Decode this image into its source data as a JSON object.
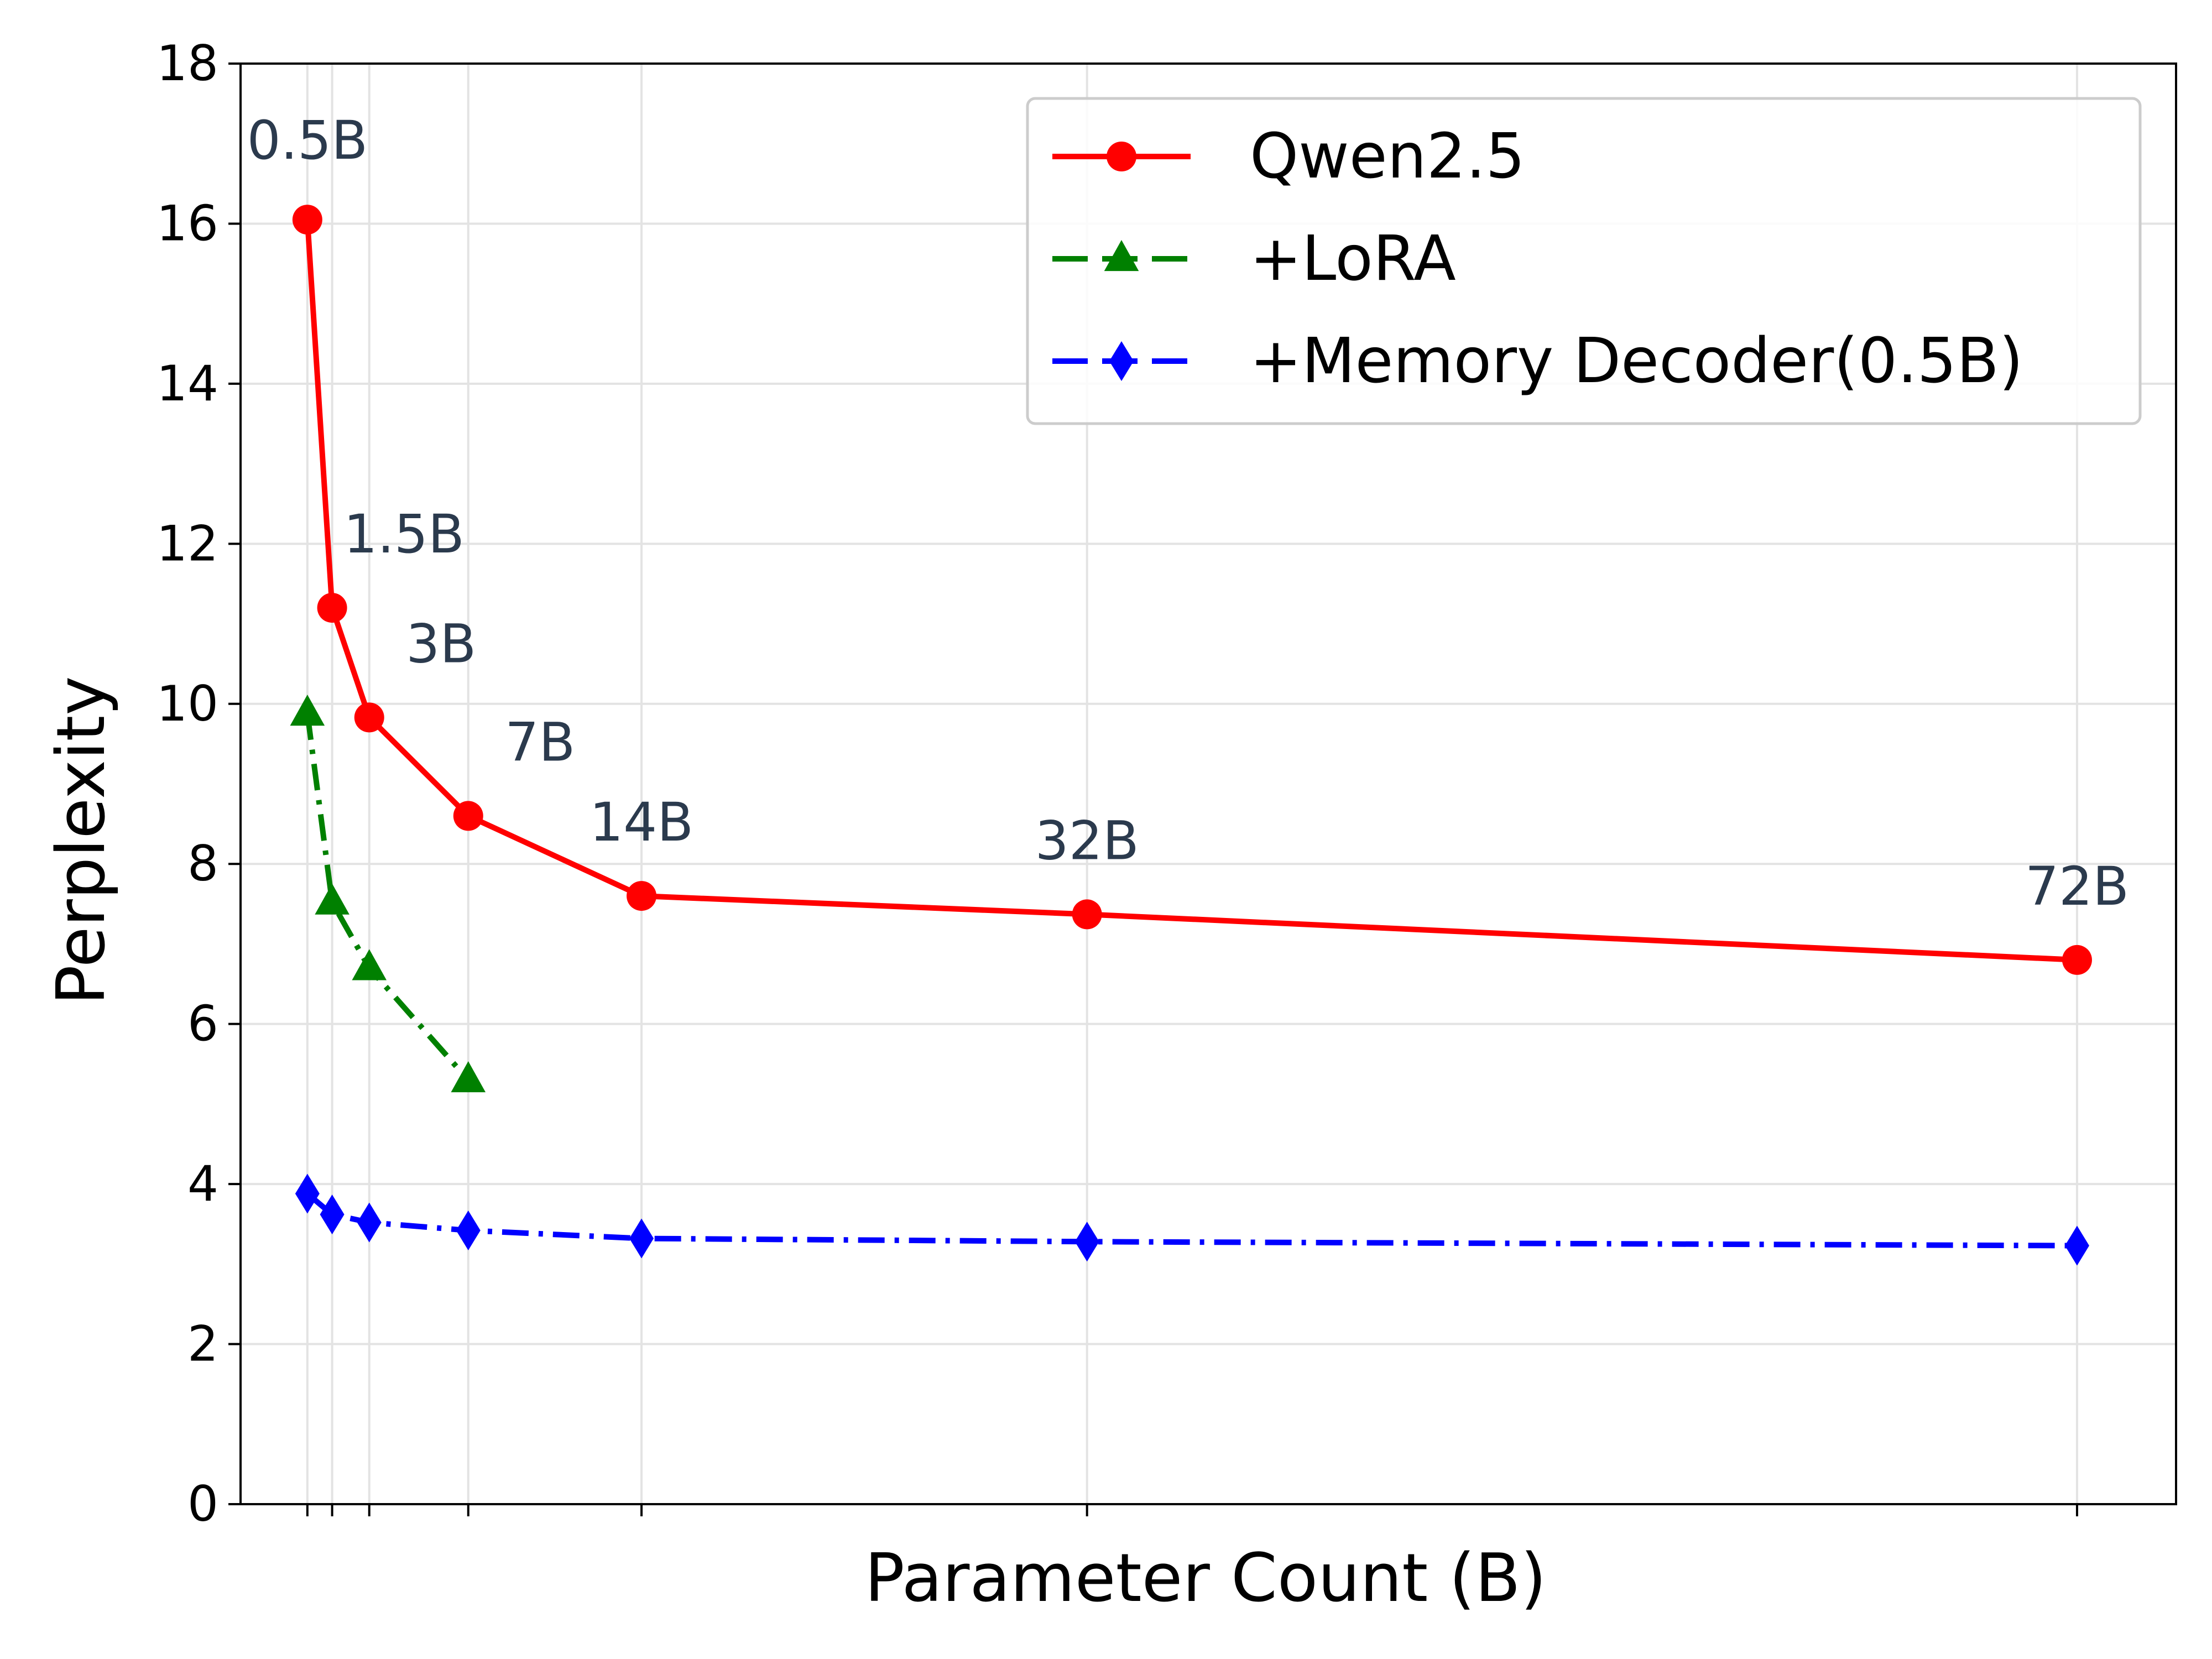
{
  "chart_data": {
    "type": "line",
    "title": "",
    "xlabel": "Parameter Count (B)",
    "ylabel": "Perplexity",
    "ylim": [
      0,
      18
    ],
    "yticks": [
      0,
      2,
      4,
      6,
      8,
      10,
      12,
      14,
      16,
      18
    ],
    "xlim": [
      -2.2,
      76
    ],
    "xticks": [
      0.5,
      1.5,
      3,
      7,
      14,
      32,
      72
    ],
    "point_labels": [
      "0.5B",
      "1.5B",
      "3B",
      "7B",
      "14B",
      "32B",
      "72B"
    ],
    "grid": true,
    "legend_position": "top-right",
    "series": [
      {
        "name": "Qwen2.5",
        "color": "#ff0000",
        "marker": "circle",
        "line_style": "solid",
        "x": [
          0.5,
          1.5,
          3,
          7,
          14,
          32,
          72
        ],
        "values": [
          16.05,
          11.2,
          9.83,
          8.6,
          7.6,
          7.37,
          6.8
        ]
      },
      {
        "name": "+LoRA",
        "color": "#008000",
        "marker": "triangle",
        "line_style": "dashdot",
        "x": [
          0.5,
          1.5,
          3,
          7
        ],
        "values": [
          9.88,
          7.52,
          6.7,
          5.3
        ]
      },
      {
        "name": "+Memory Decoder(0.5B)",
        "color": "#0000ff",
        "marker": "diamond",
        "line_style": "dashdot",
        "x": [
          0.5,
          1.5,
          3,
          7,
          14,
          32,
          72
        ],
        "values": [
          3.88,
          3.62,
          3.52,
          3.42,
          3.32,
          3.28,
          3.23
        ]
      }
    ]
  }
}
